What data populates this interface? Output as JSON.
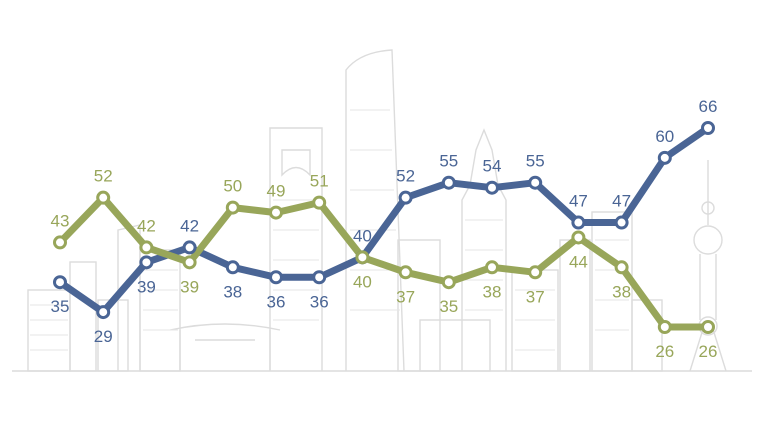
{
  "chart_data": {
    "type": "line",
    "x": [
      1,
      2,
      3,
      4,
      5,
      6,
      7,
      8,
      9,
      10,
      11,
      12,
      13,
      14,
      15,
      16
    ],
    "series": [
      {
        "color": "#4a6595",
        "values": [
          35,
          29,
          39,
          42,
          38,
          36,
          36,
          40,
          52,
          55,
          54,
          55,
          47,
          47,
          60,
          66
        ]
      },
      {
        "color": "#98a65a",
        "values": [
          43,
          52,
          42,
          39,
          50,
          49,
          51,
          40,
          37,
          35,
          38,
          37,
          44,
          38,
          26,
          26
        ]
      }
    ],
    "label_positions": [
      [
        "below",
        "below",
        "below",
        "above",
        "below",
        "below",
        "below",
        "above",
        "above",
        "above",
        "above",
        "above",
        "above",
        "above",
        "above",
        "above"
      ],
      [
        "above",
        "above",
        "above",
        "below",
        "above",
        "above",
        "above",
        "below",
        "below",
        "below",
        "below",
        "below",
        "below",
        "below",
        "below",
        "below"
      ]
    ],
    "background": "city-skyline-outline",
    "grid": false,
    "legend": "none"
  }
}
